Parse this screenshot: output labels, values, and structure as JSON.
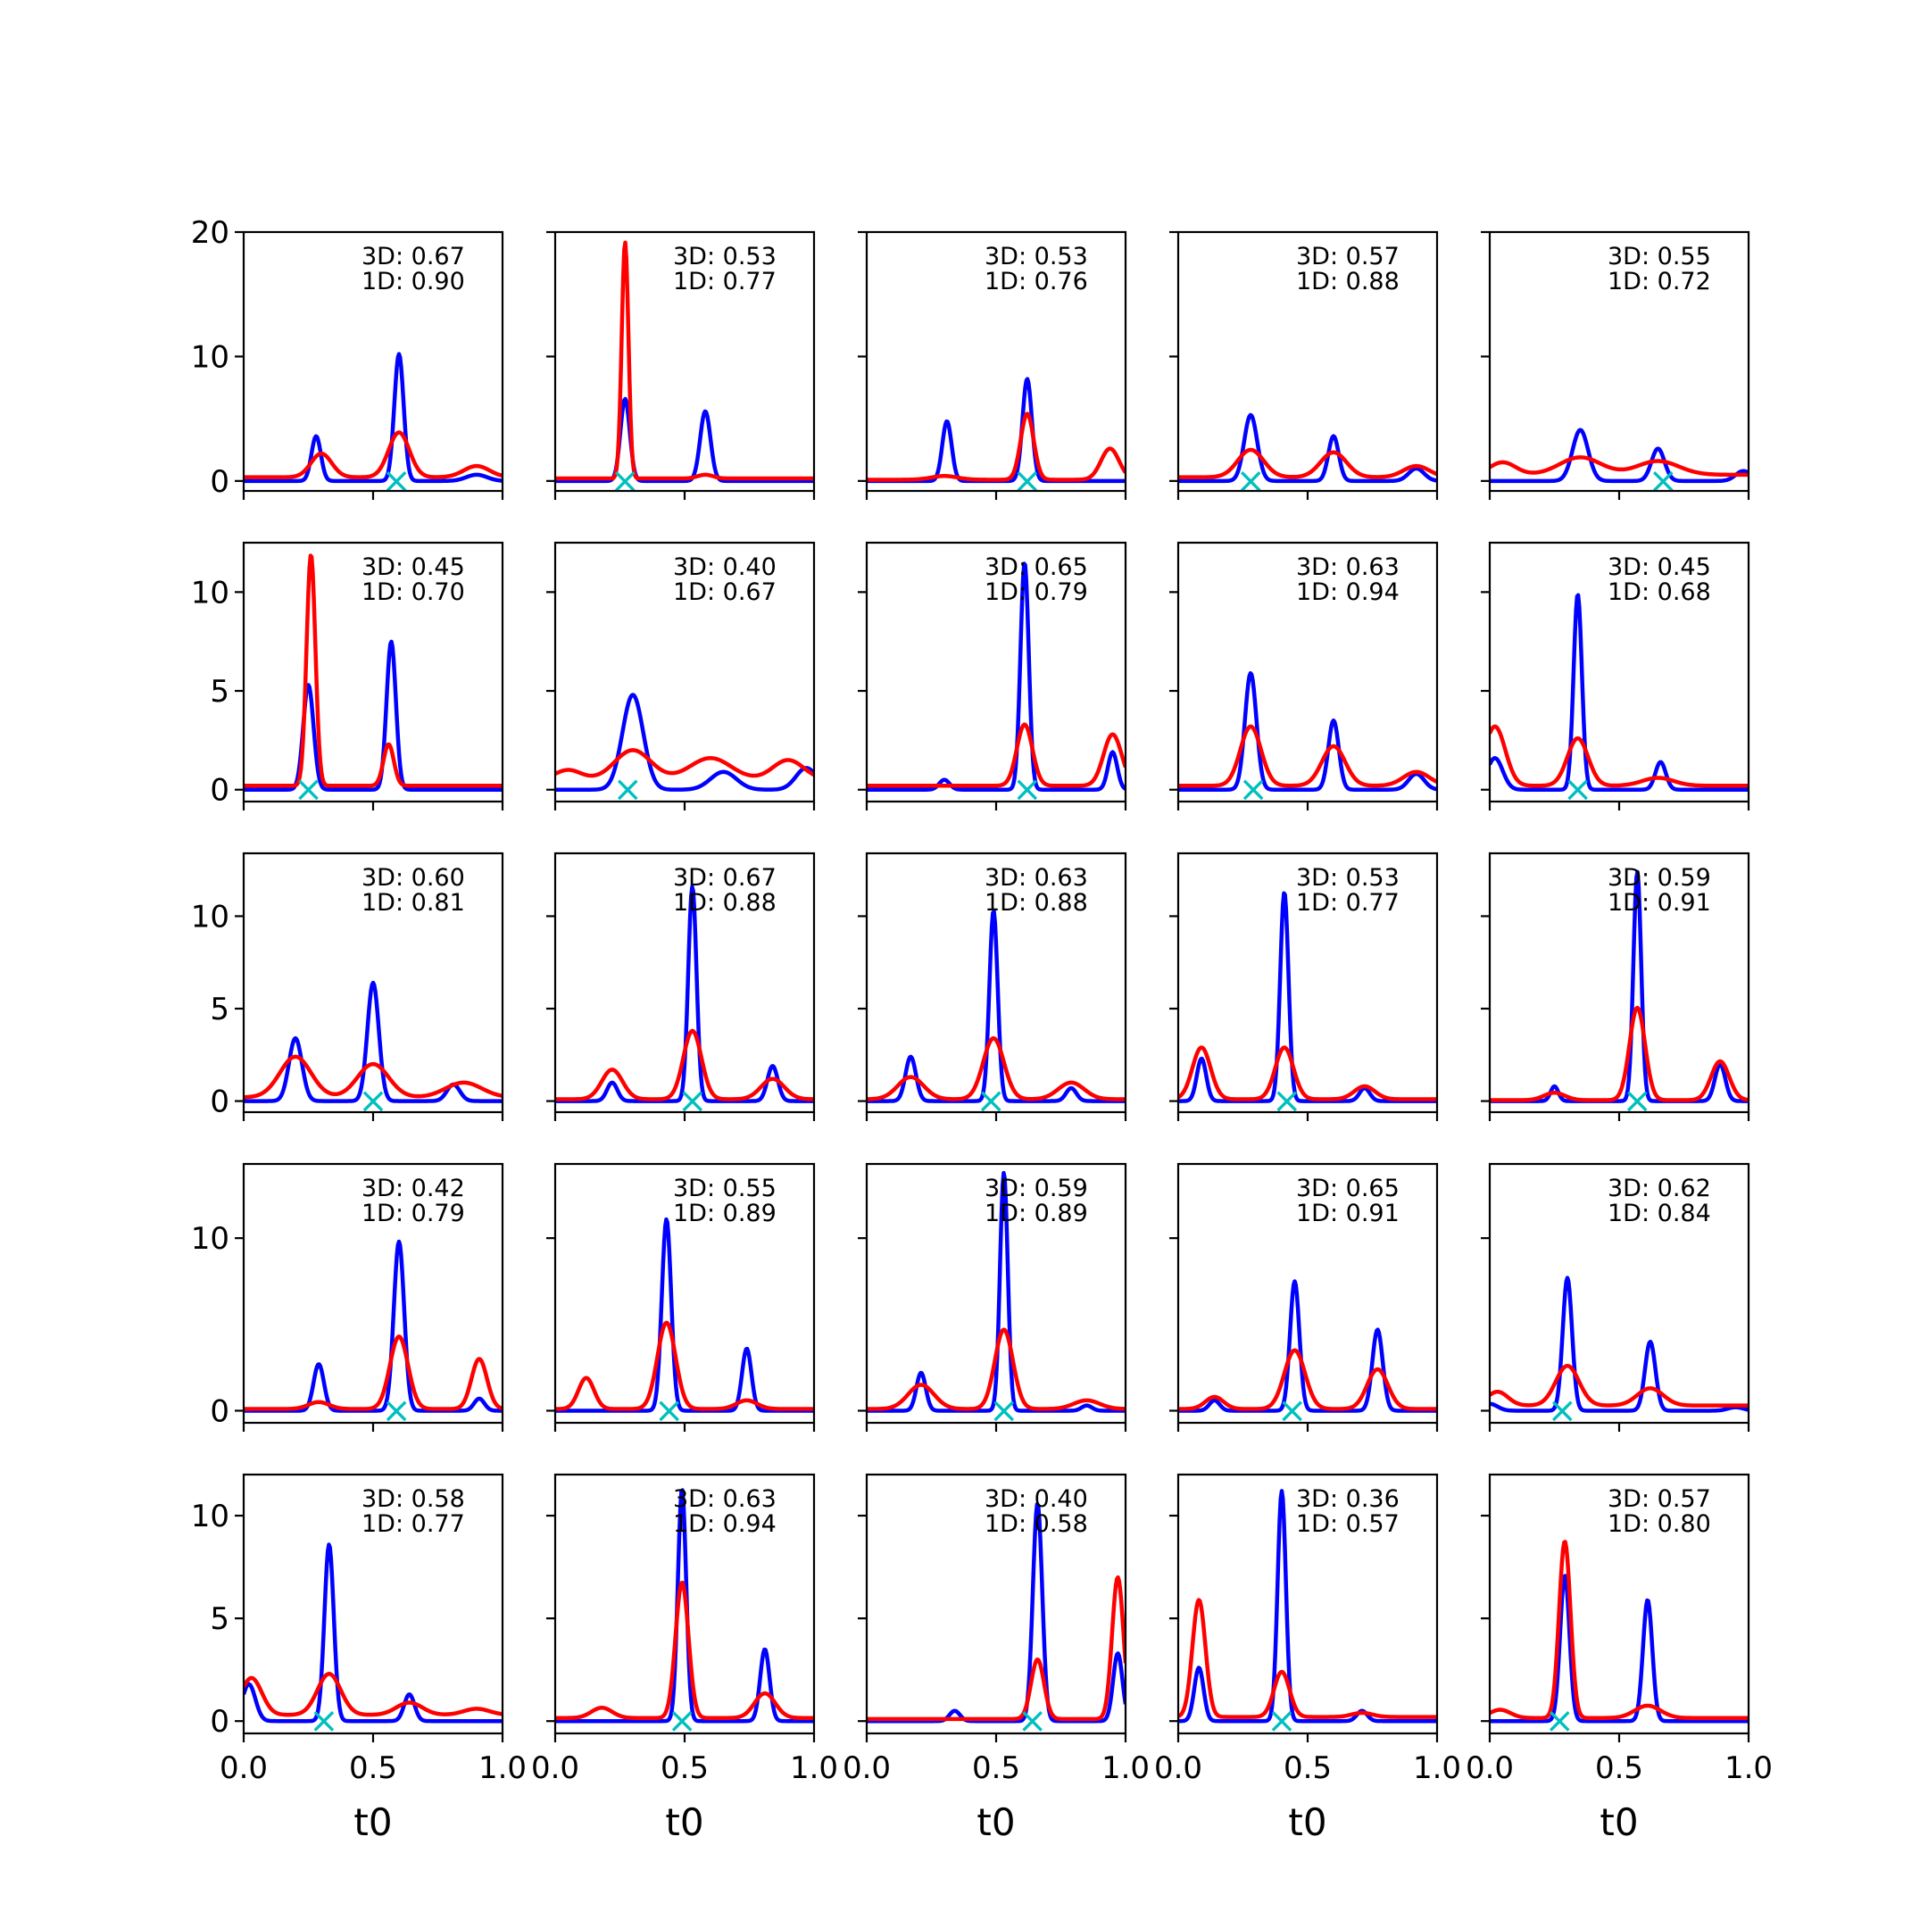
{
  "chart_data": {
    "type": "line",
    "layout": "5x5 grid of subplots, shared x axis",
    "xlabel": "t0",
    "xlim": [
      0.0,
      1.0
    ],
    "xticks": [
      0.0,
      0.5,
      1.0
    ],
    "xtick_labels": [
      "0.0",
      "0.5",
      "1.0"
    ],
    "series_colors": {
      "blue": "#0000ff",
      "red": "#ff0000",
      "marker": "#00bfbf"
    },
    "marker_symbol": "×",
    "rows": [
      {
        "ylim": [
          -0.8,
          20
        ],
        "yticks": [
          0,
          10,
          20
        ],
        "ytick_labels": [
          "0",
          "10",
          "20"
        ]
      },
      {
        "ylim": [
          -0.6,
          12.5
        ],
        "yticks": [
          0,
          5,
          10
        ],
        "ytick_labels": [
          "0",
          "5",
          "10"
        ]
      },
      {
        "ylim": [
          -0.6,
          13.4
        ],
        "yticks": [
          0,
          5,
          10
        ],
        "ytick_labels": [
          "0",
          "5",
          "10"
        ]
      },
      {
        "ylim": [
          -0.7,
          14.3
        ],
        "yticks": [
          0,
          10
        ],
        "ytick_labels": [
          "0",
          "10"
        ]
      },
      {
        "ylim": [
          -0.6,
          12.0
        ],
        "yticks": [
          0,
          5,
          10
        ],
        "ytick_labels": [
          "0",
          "5",
          "10"
        ]
      }
    ],
    "panels": [
      {
        "label3d": "3D: 0.67",
        "label1d": "1D: 0.90",
        "marker_x": 0.59,
        "blue": [
          [
            0.28,
            3.6,
            0.018
          ],
          [
            0.6,
            10.2,
            0.018
          ],
          [
            0.9,
            0.5,
            0.04
          ]
        ],
        "red": [
          [
            0.3,
            1.9,
            0.04
          ],
          [
            0.6,
            3.6,
            0.04
          ],
          [
            0.9,
            0.9,
            0.05
          ]
        ],
        "red_base": 0.3
      },
      {
        "label3d": "3D: 0.53",
        "label1d": "1D: 0.77",
        "marker_x": 0.27,
        "blue": [
          [
            0.27,
            6.6,
            0.018
          ],
          [
            0.58,
            5.6,
            0.02
          ]
        ],
        "red": [
          [
            0.27,
            19.0,
            0.013
          ],
          [
            0.58,
            0.3,
            0.03
          ]
        ],
        "red_base": 0.2
      },
      {
        "label3d": "3D: 0.53",
        "label1d": "1D: 0.76",
        "marker_x": 0.62,
        "blue": [
          [
            0.31,
            4.8,
            0.018
          ],
          [
            0.62,
            8.2,
            0.018
          ]
        ],
        "red": [
          [
            0.62,
            5.3,
            0.025
          ],
          [
            0.94,
            2.5,
            0.035
          ],
          [
            0.3,
            0.3,
            0.05
          ]
        ],
        "red_base": 0.1
      },
      {
        "label3d": "3D: 0.57",
        "label1d": "1D: 0.88",
        "marker_x": 0.28,
        "blue": [
          [
            0.28,
            5.3,
            0.025
          ],
          [
            0.6,
            3.6,
            0.02
          ],
          [
            0.92,
            1.0,
            0.03
          ]
        ],
        "red": [
          [
            0.28,
            2.2,
            0.05
          ],
          [
            0.6,
            2.0,
            0.05
          ],
          [
            0.92,
            0.9,
            0.05
          ]
        ],
        "red_base": 0.3
      },
      {
        "label3d": "3D: 0.55",
        "label1d": "1D: 0.72",
        "marker_x": 0.67,
        "blue": [
          [
            0.35,
            4.1,
            0.03
          ],
          [
            0.65,
            2.6,
            0.025
          ],
          [
            0.98,
            0.8,
            0.03
          ]
        ],
        "red": [
          [
            0.05,
            1.0,
            0.05
          ],
          [
            0.35,
            1.4,
            0.08
          ],
          [
            0.65,
            1.1,
            0.08
          ]
        ],
        "red_base": 0.5
      },
      {
        "label3d": "3D: 0.45",
        "label1d": "1D: 0.70",
        "marker_x": 0.25,
        "blue": [
          [
            0.25,
            5.3,
            0.02
          ],
          [
            0.57,
            7.5,
            0.018
          ]
        ],
        "red": [
          [
            0.26,
            11.7,
            0.017
          ],
          [
            0.56,
            2.1,
            0.02
          ]
        ],
        "red_base": 0.2
      },
      {
        "label3d": "3D: 0.40",
        "label1d": "1D: 0.67",
        "marker_x": 0.28,
        "blue": [
          [
            0.3,
            4.8,
            0.04
          ],
          [
            0.65,
            0.9,
            0.05
          ],
          [
            0.97,
            1.1,
            0.04
          ]
        ],
        "red": [
          [
            0.05,
            0.5,
            0.05
          ],
          [
            0.3,
            1.5,
            0.07
          ],
          [
            0.6,
            1.1,
            0.08
          ],
          [
            0.9,
            1.0,
            0.06
          ]
        ],
        "red_base": 0.5
      },
      {
        "label3d": "3D: 0.65",
        "label1d": "1D: 0.79",
        "marker_x": 0.62,
        "blue": [
          [
            0.3,
            0.5,
            0.02
          ],
          [
            0.61,
            11.5,
            0.016
          ],
          [
            0.95,
            1.9,
            0.018
          ]
        ],
        "red": [
          [
            0.61,
            3.1,
            0.03
          ],
          [
            0.95,
            2.6,
            0.035
          ]
        ],
        "red_base": 0.2
      },
      {
        "label3d": "3D: 0.63",
        "label1d": "1D: 0.94",
        "marker_x": 0.29,
        "blue": [
          [
            0.28,
            5.9,
            0.022
          ],
          [
            0.6,
            3.5,
            0.02
          ],
          [
            0.92,
            0.8,
            0.03
          ]
        ],
        "red": [
          [
            0.28,
            3.0,
            0.04
          ],
          [
            0.6,
            2.0,
            0.045
          ],
          [
            0.92,
            0.7,
            0.05
          ]
        ],
        "red_base": 0.2
      },
      {
        "label3d": "3D: 0.45",
        "label1d": "1D: 0.68",
        "marker_x": 0.34,
        "blue": [
          [
            0.02,
            1.6,
            0.03
          ],
          [
            0.34,
            9.9,
            0.016
          ],
          [
            0.66,
            1.4,
            0.02
          ]
        ],
        "red": [
          [
            0.02,
            3.0,
            0.04
          ],
          [
            0.34,
            2.4,
            0.04
          ],
          [
            0.65,
            0.4,
            0.06
          ]
        ],
        "red_base": 0.2
      },
      {
        "label3d": "3D: 0.60",
        "label1d": "1D: 0.81",
        "marker_x": 0.5,
        "blue": [
          [
            0.2,
            3.4,
            0.025
          ],
          [
            0.5,
            6.4,
            0.022
          ],
          [
            0.81,
            0.9,
            0.025
          ]
        ],
        "red": [
          [
            0.2,
            2.2,
            0.06
          ],
          [
            0.5,
            1.8,
            0.06
          ],
          [
            0.85,
            0.8,
            0.07
          ]
        ],
        "red_base": 0.2
      },
      {
        "label3d": "3D: 0.67",
        "label1d": "1D: 0.88",
        "marker_x": 0.53,
        "blue": [
          [
            0.22,
            1.0,
            0.02
          ],
          [
            0.53,
            11.6,
            0.016
          ],
          [
            0.84,
            1.9,
            0.02
          ]
        ],
        "red": [
          [
            0.22,
            1.6,
            0.04
          ],
          [
            0.53,
            3.7,
            0.035
          ],
          [
            0.84,
            1.1,
            0.045
          ]
        ],
        "red_base": 0.1
      },
      {
        "label3d": "3D: 0.63",
        "label1d": "1D: 0.88",
        "marker_x": 0.48,
        "blue": [
          [
            0.17,
            2.4,
            0.02
          ],
          [
            0.49,
            10.3,
            0.016
          ],
          [
            0.79,
            0.7,
            0.02
          ]
        ],
        "red": [
          [
            0.17,
            1.2,
            0.05
          ],
          [
            0.49,
            3.3,
            0.04
          ],
          [
            0.79,
            0.9,
            0.05
          ]
        ],
        "red_base": 0.1
      },
      {
        "label3d": "3D: 0.53",
        "label1d": "1D: 0.77",
        "marker_x": 0.42,
        "blue": [
          [
            0.09,
            2.3,
            0.018
          ],
          [
            0.41,
            11.3,
            0.016
          ],
          [
            0.72,
            0.7,
            0.02
          ]
        ],
        "red": [
          [
            0.09,
            2.8,
            0.035
          ],
          [
            0.41,
            2.8,
            0.035
          ],
          [
            0.72,
            0.7,
            0.04
          ]
        ],
        "red_base": 0.1
      },
      {
        "label3d": "3D: 0.59",
        "label1d": "1D: 0.91",
        "marker_x": 0.57,
        "blue": [
          [
            0.25,
            0.8,
            0.015
          ],
          [
            0.57,
            12.4,
            0.015
          ],
          [
            0.89,
            2.0,
            0.02
          ]
        ],
        "red": [
          [
            0.25,
            0.4,
            0.04
          ],
          [
            0.57,
            5.0,
            0.03
          ],
          [
            0.89,
            2.1,
            0.035
          ]
        ],
        "red_base": 0.05
      },
      {
        "label3d": "3D: 0.42",
        "label1d": "1D: 0.79",
        "marker_x": 0.59,
        "blue": [
          [
            0.29,
            2.7,
            0.02
          ],
          [
            0.6,
            9.8,
            0.02
          ],
          [
            0.91,
            0.7,
            0.02
          ]
        ],
        "red": [
          [
            0.29,
            0.4,
            0.04
          ],
          [
            0.6,
            4.2,
            0.035
          ],
          [
            0.91,
            2.9,
            0.03
          ]
        ],
        "red_base": 0.1
      },
      {
        "label3d": "3D: 0.55",
        "label1d": "1D: 0.89",
        "marker_x": 0.44,
        "blue": [
          [
            0.43,
            11.1,
            0.018
          ],
          [
            0.74,
            3.6,
            0.018
          ]
        ],
        "red": [
          [
            0.12,
            1.8,
            0.03
          ],
          [
            0.43,
            5.0,
            0.035
          ],
          [
            0.74,
            0.5,
            0.04
          ]
        ],
        "red_base": 0.1
      },
      {
        "label3d": "3D: 0.59",
        "label1d": "1D: 0.89",
        "marker_x": 0.53,
        "blue": [
          [
            0.21,
            2.2,
            0.018
          ],
          [
            0.53,
            13.8,
            0.015
          ],
          [
            0.85,
            0.3,
            0.02
          ]
        ],
        "red": [
          [
            0.21,
            1.4,
            0.05
          ],
          [
            0.53,
            4.6,
            0.035
          ],
          [
            0.85,
            0.5,
            0.05
          ]
        ],
        "red_base": 0.1
      },
      {
        "label3d": "3D: 0.65",
        "label1d": "1D: 0.91",
        "marker_x": 0.44,
        "blue": [
          [
            0.14,
            0.6,
            0.02
          ],
          [
            0.45,
            7.5,
            0.018
          ],
          [
            0.77,
            4.7,
            0.02
          ]
        ],
        "red": [
          [
            0.14,
            0.7,
            0.035
          ],
          [
            0.45,
            3.4,
            0.04
          ],
          [
            0.77,
            2.3,
            0.04
          ]
        ],
        "red_base": 0.1
      },
      {
        "label3d": "3D: 0.62",
        "label1d": "1D: 0.84",
        "marker_x": 0.28,
        "blue": [
          [
            0.0,
            0.4,
            0.03
          ],
          [
            0.3,
            7.7,
            0.018
          ],
          [
            0.62,
            4.0,
            0.02
          ],
          [
            0.95,
            0.2,
            0.03
          ]
        ],
        "red": [
          [
            0.03,
            0.8,
            0.04
          ],
          [
            0.3,
            2.3,
            0.045
          ],
          [
            0.62,
            1.0,
            0.05
          ]
        ],
        "red_base": 0.3
      },
      {
        "label3d": "3D: 0.58",
        "label1d": "1D: 0.77",
        "marker_x": 0.31,
        "blue": [
          [
            0.02,
            1.8,
            0.025
          ],
          [
            0.33,
            8.6,
            0.018
          ],
          [
            0.64,
            1.3,
            0.02
          ]
        ],
        "red": [
          [
            0.03,
            1.8,
            0.04
          ],
          [
            0.33,
            2.0,
            0.045
          ],
          [
            0.64,
            0.6,
            0.05
          ],
          [
            0.9,
            0.3,
            0.05
          ]
        ],
        "red_base": 0.3
      },
      {
        "label3d": "3D: 0.63",
        "label1d": "1D: 0.94",
        "marker_x": 0.49,
        "blue": [
          [
            0.49,
            11.3,
            0.016
          ],
          [
            0.81,
            3.5,
            0.018
          ]
        ],
        "red": [
          [
            0.18,
            0.5,
            0.04
          ],
          [
            0.49,
            6.6,
            0.025
          ],
          [
            0.81,
            1.2,
            0.04
          ]
        ],
        "red_base": 0.15
      },
      {
        "label3d": "3D: 0.40",
        "label1d": "1D: 0.58",
        "marker_x": 0.64,
        "blue": [
          [
            0.34,
            0.5,
            0.02
          ],
          [
            0.66,
            10.6,
            0.018
          ],
          [
            0.97,
            3.3,
            0.018
          ]
        ],
        "red": [
          [
            0.66,
            2.9,
            0.025
          ],
          [
            0.97,
            6.9,
            0.022
          ]
        ],
        "red_base": 0.1
      },
      {
        "label3d": "3D: 0.36",
        "label1d": "1D: 0.57",
        "marker_x": 0.4,
        "blue": [
          [
            0.08,
            2.6,
            0.018
          ],
          [
            0.4,
            11.2,
            0.016
          ],
          [
            0.71,
            0.5,
            0.02
          ]
        ],
        "red": [
          [
            0.08,
            5.7,
            0.025
          ],
          [
            0.4,
            2.2,
            0.03
          ],
          [
            0.71,
            0.2,
            0.04
          ]
        ],
        "red_base": 0.2
      },
      {
        "label3d": "3D: 0.57",
        "label1d": "1D: 0.80",
        "marker_x": 0.27,
        "blue": [
          [
            0.29,
            7.1,
            0.018
          ],
          [
            0.61,
            5.9,
            0.018
          ]
        ],
        "red": [
          [
            0.04,
            0.4,
            0.04
          ],
          [
            0.29,
            8.6,
            0.022
          ],
          [
            0.61,
            0.6,
            0.05
          ]
        ],
        "red_base": 0.15
      }
    ]
  }
}
